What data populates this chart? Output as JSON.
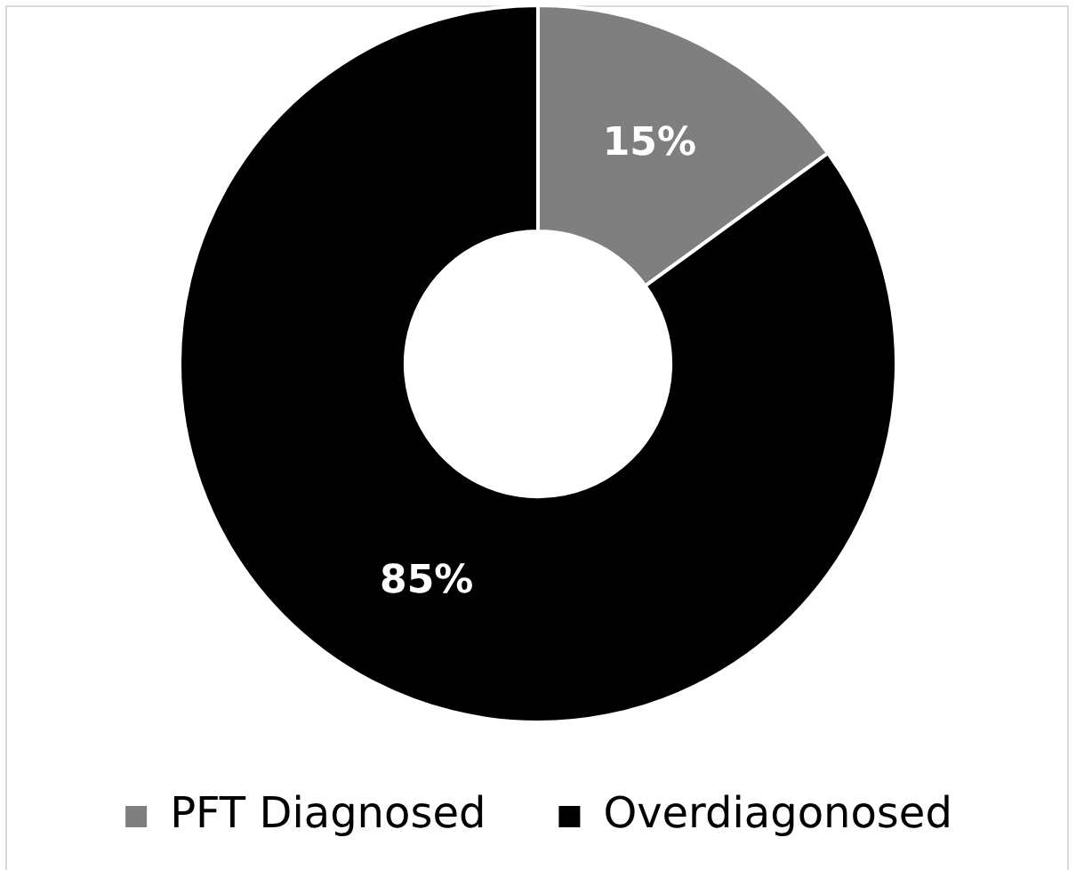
{
  "chart_data": {
    "type": "donut",
    "categories": [
      "PFT Diagnosed",
      "Overdiagonosed"
    ],
    "values": [
      15,
      85
    ],
    "colors": [
      "#7f7f7f",
      "#000000"
    ],
    "value_labels": [
      "15%",
      "85%"
    ],
    "legend": "bottom"
  }
}
